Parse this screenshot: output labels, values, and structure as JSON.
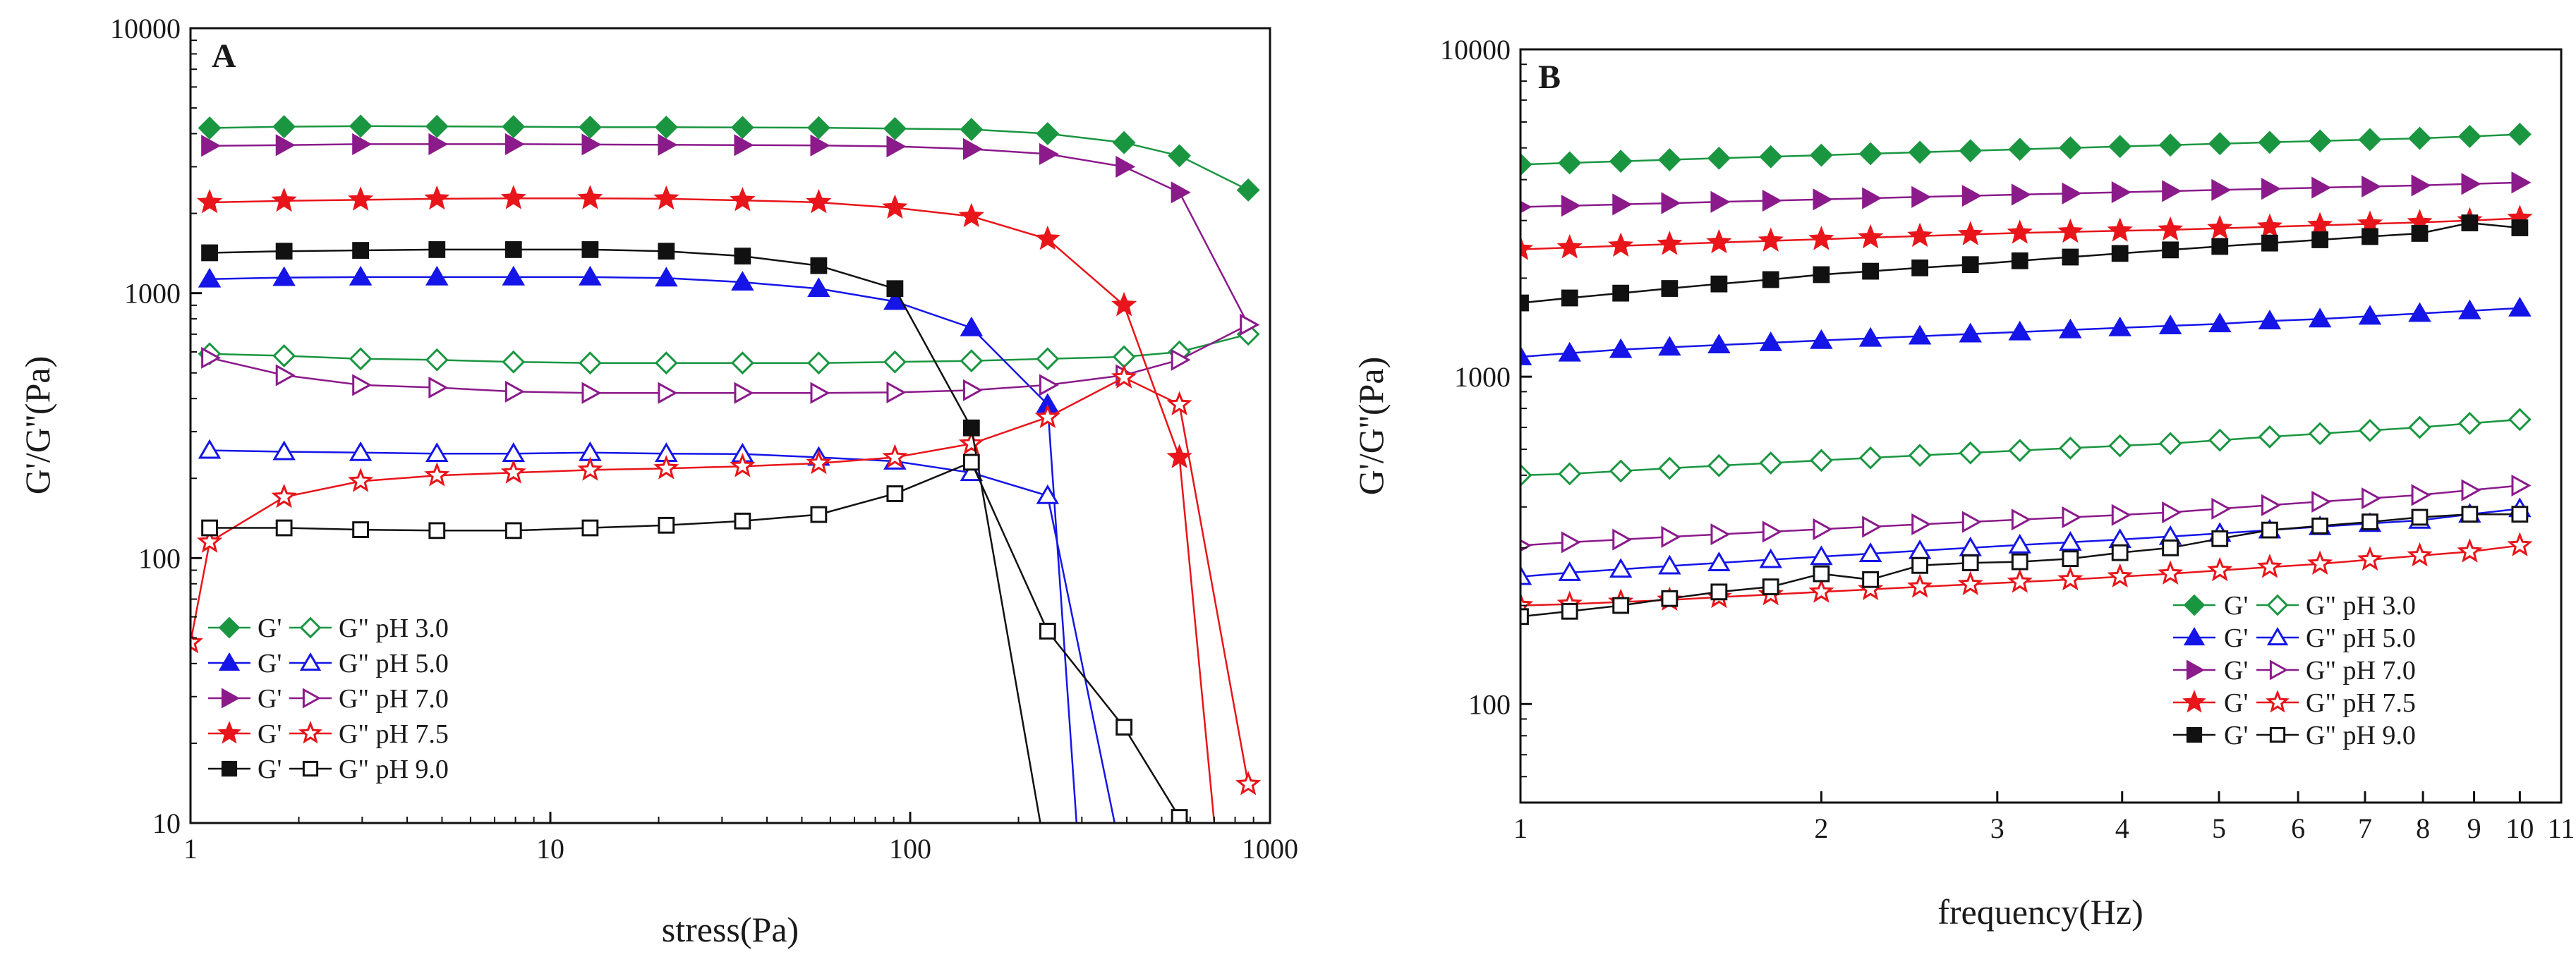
{
  "chart_data": [
    {
      "panel": "A",
      "type": "line",
      "xscale": "log",
      "yscale": "log",
      "xlabel": "stress(Pa)",
      "ylabel": "G'/G''(Pa)",
      "xlim": [
        1,
        1000
      ],
      "ylim": [
        10,
        10000
      ],
      "xticks": [
        {
          "v": 1,
          "label": "1"
        },
        {
          "v": 10,
          "label": "10"
        },
        {
          "v": 100,
          "label": "100"
        },
        {
          "v": 1000,
          "label": "1000"
        }
      ],
      "yticks": [
        {
          "v": 10,
          "label": "10"
        },
        {
          "v": 100,
          "label": "100"
        },
        {
          "v": 1000,
          "label": "1000"
        },
        {
          "v": 10000,
          "label": "10000"
        }
      ],
      "legend_position": "bottom-left",
      "legend": [
        {
          "gp_label": "G'",
          "gpp_label": "G\" pH 3.0"
        },
        {
          "gp_label": "G'",
          "gpp_label": "G\" pH 5.0"
        },
        {
          "gp_label": "G'",
          "gpp_label": "G\" pH 7.0"
        },
        {
          "gp_label": "G'",
          "gpp_label": "G\" pH 7.5"
        },
        {
          "gp_label": "G'",
          "gpp_label": "G\" pH 9.0"
        }
      ],
      "series": [
        {
          "name": "G' pH 3.0",
          "color": "#1a9641",
          "marker": "diamond",
          "filled": true,
          "x": [
            1.13,
            1.82,
            2.97,
            4.84,
            7.9,
            12.9,
            21.0,
            34.2,
            55.7,
            90.7,
            148,
            241,
            393,
            560,
            870
          ],
          "y": [
            4200,
            4250,
            4270,
            4260,
            4250,
            4230,
            4230,
            4220,
            4210,
            4180,
            4150,
            4000,
            3700,
            3300,
            2450
          ]
        },
        {
          "name": "G'' pH 3.0",
          "color": "#1a9641",
          "marker": "diamond",
          "filled": false,
          "x": [
            1.13,
            1.82,
            2.97,
            4.84,
            7.9,
            12.9,
            21.0,
            34.2,
            55.7,
            90.7,
            148,
            241,
            393,
            560,
            870
          ],
          "y": [
            590,
            580,
            565,
            560,
            550,
            545,
            545,
            545,
            545,
            550,
            555,
            565,
            575,
            600,
            700
          ]
        },
        {
          "name": "G' pH 5.0",
          "color": "#1515e8",
          "marker": "triangle-up",
          "filled": true,
          "x": [
            1.13,
            1.82,
            2.97,
            4.84,
            7.9,
            12.9,
            21.0,
            34.2,
            55.7,
            90.7,
            148,
            241,
            290
          ],
          "y": [
            1130,
            1145,
            1150,
            1150,
            1150,
            1150,
            1140,
            1100,
            1040,
            930,
            740,
            380,
            10
          ]
        },
        {
          "name": "G'' pH 5.0",
          "color": "#1515e8",
          "marker": "triangle-up",
          "filled": false,
          "x": [
            1.13,
            1.82,
            2.97,
            4.84,
            7.9,
            12.9,
            21.0,
            34.2,
            55.7,
            90.7,
            148,
            241,
            370
          ],
          "y": [
            255,
            252,
            250,
            248,
            248,
            250,
            248,
            247,
            240,
            232,
            210,
            172,
            10
          ]
        },
        {
          "name": "G' pH 7.0",
          "color": "#8b1a8b",
          "marker": "triangle-right",
          "filled": true,
          "x": [
            1.13,
            1.82,
            2.97,
            4.84,
            7.9,
            12.9,
            21.0,
            34.2,
            55.7,
            90.7,
            148,
            241,
            393,
            560,
            870
          ],
          "y": [
            3600,
            3620,
            3650,
            3650,
            3650,
            3640,
            3630,
            3620,
            3610,
            3580,
            3500,
            3350,
            3000,
            2400,
            760
          ]
        },
        {
          "name": "G'' pH 7.0",
          "color": "#8b1a8b",
          "marker": "triangle-right",
          "filled": false,
          "x": [
            1.13,
            1.82,
            2.97,
            4.84,
            7.9,
            12.9,
            21.0,
            34.2,
            55.7,
            90.7,
            148,
            241,
            393,
            560,
            870
          ],
          "y": [
            570,
            490,
            450,
            440,
            425,
            420,
            420,
            420,
            420,
            422,
            430,
            450,
            490,
            560,
            760
          ]
        },
        {
          "name": "G' pH 7.5",
          "color": "#e8151a",
          "marker": "star",
          "filled": true,
          "x": [
            1.13,
            1.82,
            2.97,
            4.84,
            7.9,
            12.9,
            21.0,
            34.2,
            55.7,
            90.7,
            148,
            241,
            393,
            560,
            700
          ],
          "y": [
            2200,
            2230,
            2250,
            2270,
            2280,
            2280,
            2270,
            2240,
            2200,
            2100,
            1950,
            1600,
            900,
            240,
            10
          ]
        },
        {
          "name": "G'' pH 7.5",
          "color": "#e8151a",
          "marker": "star",
          "filled": false,
          "x": [
            1.0,
            1.13,
            1.82,
            2.97,
            4.84,
            7.9,
            12.9,
            21.0,
            34.2,
            55.7,
            90.7,
            148,
            241,
            393,
            560,
            870
          ],
          "y": [
            48,
            115,
            170,
            195,
            205,
            210,
            215,
            218,
            222,
            228,
            240,
            270,
            340,
            480,
            380,
            14
          ]
        },
        {
          "name": "G' pH 9.0",
          "color": "#111111",
          "marker": "square",
          "filled": true,
          "x": [
            1.13,
            1.82,
            2.97,
            4.84,
            7.9,
            12.9,
            21.0,
            34.2,
            55.7,
            90.7,
            148,
            230
          ],
          "y": [
            1420,
            1440,
            1450,
            1460,
            1460,
            1460,
            1440,
            1380,
            1270,
            1040,
            310,
            10
          ]
        },
        {
          "name": "G'' pH 9.0",
          "color": "#111111",
          "marker": "square",
          "filled": false,
          "x": [
            1.13,
            1.82,
            2.97,
            4.84,
            7.9,
            12.9,
            21.0,
            34.2,
            55.7,
            90.7,
            148,
            241,
            393,
            560,
            600
          ],
          "y": [
            130,
            130,
            128,
            127,
            127,
            130,
            133,
            138,
            146,
            175,
            230,
            53,
            23,
            10.5,
            10
          ]
        }
      ]
    },
    {
      "panel": "B",
      "type": "line",
      "xscale": "log",
      "yscale": "log",
      "xlabel": "frequency(Hz)",
      "ylabel": "G'/G''(Pa)",
      "xlim": [
        1,
        11
      ],
      "ylim": [
        50,
        10000
      ],
      "xticks": [
        {
          "v": 1,
          "label": "1"
        },
        {
          "v": 2,
          "label": "2"
        },
        {
          "v": 3,
          "label": "3"
        },
        {
          "v": 4,
          "label": "4"
        },
        {
          "v": 5,
          "label": "5"
        },
        {
          "v": 6,
          "label": "6"
        },
        {
          "v": 7,
          "label": "7"
        },
        {
          "v": 8,
          "label": "8"
        },
        {
          "v": 9,
          "label": "9"
        },
        {
          "v": 10,
          "label": "10"
        },
        {
          "v": 11,
          "label": "11"
        }
      ],
      "yticks": [
        {
          "v": 100,
          "label": "100"
        },
        {
          "v": 1000,
          "label": "1000"
        },
        {
          "v": 10000,
          "label": "10000"
        }
      ],
      "legend_position": "bottom-right",
      "legend": [
        {
          "gp_label": "G'",
          "gpp_label": "G\" pH 3.0"
        },
        {
          "gp_label": "G'",
          "gpp_label": "G\" pH 5.0"
        },
        {
          "gp_label": "G'",
          "gpp_label": "G\" pH 7.0"
        },
        {
          "gp_label": "G'",
          "gpp_label": "G\" pH 7.5"
        },
        {
          "gp_label": "G'",
          "gpp_label": "G\" pH 9.0"
        }
      ],
      "series": [
        {
          "name": "G' pH 3.0",
          "color": "#1a9641",
          "marker": "diamond",
          "filled": true,
          "x": [
            1.0,
            1.12,
            1.26,
            1.41,
            1.58,
            1.78,
            2.0,
            2.24,
            2.51,
            2.82,
            3.16,
            3.55,
            3.98,
            4.47,
            5.01,
            5.62,
            6.31,
            7.08,
            7.94,
            8.91,
            10.0
          ],
          "y": [
            4450,
            4500,
            4550,
            4600,
            4650,
            4700,
            4750,
            4800,
            4850,
            4900,
            4950,
            5000,
            5050,
            5100,
            5150,
            5200,
            5250,
            5300,
            5350,
            5420,
            5500
          ]
        },
        {
          "name": "G'' pH 3.0",
          "color": "#1a9641",
          "marker": "diamond",
          "filled": false,
          "x": [
            1.0,
            1.12,
            1.26,
            1.41,
            1.58,
            1.78,
            2.0,
            2.24,
            2.51,
            2.82,
            3.16,
            3.55,
            3.98,
            4.47,
            5.01,
            5.62,
            6.31,
            7.08,
            7.94,
            8.91,
            10.0
          ],
          "y": [
            500,
            505,
            515,
            525,
            535,
            545,
            555,
            565,
            575,
            585,
            595,
            605,
            615,
            625,
            640,
            655,
            670,
            685,
            700,
            720,
            740
          ]
        },
        {
          "name": "G' pH 5.0",
          "color": "#1515e8",
          "marker": "triangle-up",
          "filled": true,
          "x": [
            1.0,
            1.12,
            1.26,
            1.41,
            1.58,
            1.78,
            2.0,
            2.24,
            2.51,
            2.82,
            3.16,
            3.55,
            3.98,
            4.47,
            5.01,
            5.62,
            6.31,
            7.08,
            7.94,
            8.91,
            10.0
          ],
          "y": [
            1150,
            1180,
            1210,
            1230,
            1250,
            1270,
            1290,
            1310,
            1330,
            1350,
            1370,
            1390,
            1410,
            1430,
            1450,
            1480,
            1500,
            1530,
            1560,
            1590,
            1620
          ]
        },
        {
          "name": "G'' pH 5.0",
          "color": "#1515e8",
          "marker": "triangle-up",
          "filled": false,
          "x": [
            1.0,
            1.12,
            1.26,
            1.41,
            1.58,
            1.78,
            2.0,
            2.24,
            2.51,
            2.82,
            3.16,
            3.55,
            3.98,
            4.47,
            5.01,
            5.62,
            6.31,
            7.08,
            7.94,
            8.91,
            10.0
          ],
          "y": [
            245,
            252,
            258,
            264,
            270,
            276,
            282,
            288,
            294,
            300,
            306,
            312,
            318,
            325,
            332,
            340,
            348,
            356,
            364,
            380,
            395
          ]
        },
        {
          "name": "G' pH 7.0",
          "color": "#8b1a8b",
          "marker": "triangle-right",
          "filled": true,
          "x": [
            1.0,
            1.12,
            1.26,
            1.41,
            1.58,
            1.78,
            2.0,
            2.24,
            2.51,
            2.82,
            3.16,
            3.55,
            3.98,
            4.47,
            5.01,
            5.62,
            6.31,
            7.08,
            7.94,
            8.91,
            10.0
          ],
          "y": [
            3300,
            3330,
            3360,
            3390,
            3420,
            3450,
            3480,
            3510,
            3540,
            3570,
            3600,
            3630,
            3660,
            3690,
            3720,
            3750,
            3780,
            3810,
            3840,
            3880,
            3920
          ]
        },
        {
          "name": "G'' pH 7.0",
          "color": "#8b1a8b",
          "marker": "triangle-right",
          "filled": false,
          "x": [
            1.0,
            1.12,
            1.26,
            1.41,
            1.58,
            1.78,
            2.0,
            2.24,
            2.51,
            2.82,
            3.16,
            3.55,
            3.98,
            4.47,
            5.01,
            5.62,
            6.31,
            7.08,
            7.94,
            8.91,
            10.0
          ],
          "y": [
            305,
            312,
            318,
            324,
            330,
            336,
            342,
            348,
            354,
            360,
            366,
            372,
            378,
            385,
            395,
            405,
            415,
            425,
            435,
            450,
            465
          ]
        },
        {
          "name": "G' pH 7.5",
          "color": "#e8151a",
          "marker": "star",
          "filled": true,
          "x": [
            1.0,
            1.12,
            1.26,
            1.41,
            1.58,
            1.78,
            2.0,
            2.24,
            2.51,
            2.82,
            3.16,
            3.55,
            3.98,
            4.47,
            5.01,
            5.62,
            6.31,
            7.08,
            7.94,
            8.91,
            10.0
          ],
          "y": [
            2450,
            2480,
            2510,
            2540,
            2570,
            2600,
            2630,
            2660,
            2690,
            2720,
            2750,
            2770,
            2790,
            2810,
            2840,
            2870,
            2900,
            2930,
            2960,
            3000,
            3050
          ]
        },
        {
          "name": "G'' pH 7.5",
          "color": "#e8151a",
          "marker": "star",
          "filled": false,
          "x": [
            1.0,
            1.12,
            1.26,
            1.41,
            1.58,
            1.78,
            2.0,
            2.24,
            2.51,
            2.82,
            3.16,
            3.55,
            3.98,
            4.47,
            5.01,
            5.62,
            6.31,
            7.08,
            7.94,
            8.91,
            10.0
          ],
          "y": [
            200,
            202,
            205,
            208,
            212,
            216,
            220,
            224,
            228,
            232,
            236,
            240,
            245,
            250,
            256,
            262,
            268,
            276,
            284,
            292,
            305
          ]
        },
        {
          "name": "G' pH 9.0",
          "color": "#111111",
          "marker": "square",
          "filled": true,
          "x": [
            1.0,
            1.12,
            1.26,
            1.41,
            1.58,
            1.78,
            2.0,
            2.24,
            2.51,
            2.82,
            3.16,
            3.55,
            3.98,
            4.47,
            5.01,
            5.62,
            6.31,
            7.08,
            7.94,
            8.91,
            10.0
          ],
          "y": [
            1680,
            1740,
            1800,
            1860,
            1920,
            1980,
            2050,
            2100,
            2150,
            2200,
            2260,
            2320,
            2380,
            2440,
            2500,
            2560,
            2620,
            2680,
            2740,
            2950,
            2850
          ]
        },
        {
          "name": "G'' pH 9.0",
          "color": "#111111",
          "marker": "square",
          "filled": false,
          "x": [
            1.0,
            1.12,
            1.26,
            1.41,
            1.58,
            1.78,
            2.0,
            2.24,
            2.51,
            2.82,
            3.16,
            3.55,
            3.98,
            4.47,
            5.01,
            5.62,
            6.31,
            7.08,
            7.94,
            8.91,
            10.0
          ],
          "y": [
            185,
            192,
            200,
            210,
            220,
            228,
            250,
            240,
            265,
            270,
            272,
            278,
            290,
            300,
            320,
            340,
            350,
            360,
            372,
            380,
            380
          ]
        }
      ]
    }
  ]
}
